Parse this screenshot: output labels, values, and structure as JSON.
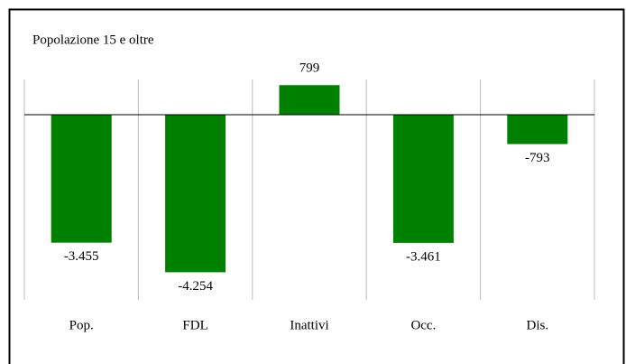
{
  "chart_data": {
    "type": "bar",
    "title": "Popolazione 15 e oltre",
    "categories": [
      "Pop.",
      "FDL",
      "Inattivi",
      "Occ.",
      "Dis."
    ],
    "values": [
      -3455,
      -4254,
      799,
      -3461,
      -793
    ],
    "value_labels": [
      "-3.455",
      "-4.254",
      "799",
      "-3.461",
      "-793"
    ],
    "color": "#008000",
    "ylim": [
      -5000,
      1000
    ]
  }
}
